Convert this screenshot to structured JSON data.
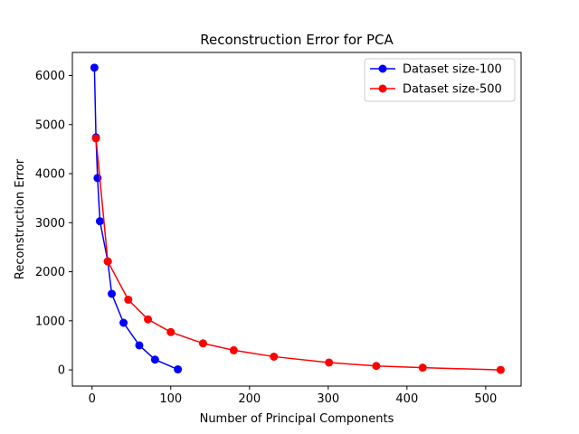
{
  "chart_data": {
    "type": "line",
    "title": "Reconstruction Error for PCA",
    "xlabel": "Number of Principal Components",
    "ylabel": "Reconstruction Error",
    "xlim": [
      -25,
      545
    ],
    "ylim": [
      -330,
      6470
    ],
    "xticks": [
      0,
      100,
      200,
      300,
      400,
      500
    ],
    "yticks": [
      0,
      1000,
      2000,
      3000,
      4000,
      5000,
      6000
    ],
    "grid": false,
    "legend_position": "top-right",
    "series": [
      {
        "name": "Dataset size-100",
        "color": "#0000ff",
        "x": [
          3,
          5,
          7,
          10,
          20,
          25,
          40,
          60,
          80,
          109
        ],
        "y": [
          6160,
          4740,
          3910,
          3030,
          2210,
          1550,
          960,
          500,
          210,
          10
        ]
      },
      {
        "name": "Dataset size-500",
        "color": "#ff0000",
        "x": [
          5,
          20,
          46,
          71,
          100,
          141,
          180,
          231,
          301,
          361,
          420,
          519
        ],
        "y": [
          4720,
          2210,
          1430,
          1030,
          770,
          540,
          400,
          270,
          150,
          80,
          45,
          0
        ]
      }
    ]
  }
}
